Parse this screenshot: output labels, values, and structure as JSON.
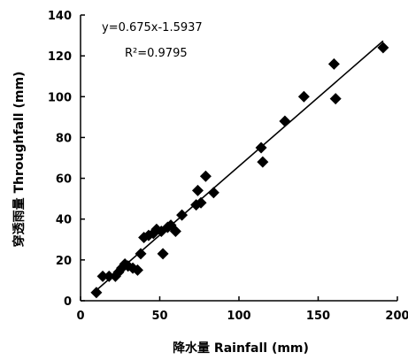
{
  "chart_data": {
    "type": "scatter",
    "title": "",
    "xlabel": "降水量 Rainfall (mm)",
    "ylabel": "穿透雨量 Throughfall (mm)",
    "xlim": [
      0,
      200
    ],
    "ylim": [
      0,
      140
    ],
    "xticks": [
      0,
      50,
      100,
      150,
      200
    ],
    "yticks": [
      0,
      20,
      40,
      60,
      80,
      100,
      120,
      140
    ],
    "grid": false,
    "marker": "diamond",
    "marker_color": "#000000",
    "annotations": [
      "y=0.675x-1.5937",
      "R²=0.9795"
    ],
    "trendline": {
      "slope": 0.675,
      "intercept": -1.5937
    },
    "series": [
      {
        "points": [
          [
            10,
            4
          ],
          [
            14,
            12
          ],
          [
            18,
            12
          ],
          [
            22,
            12
          ],
          [
            24,
            14
          ],
          [
            26,
            16
          ],
          [
            28,
            18
          ],
          [
            30,
            17
          ],
          [
            33,
            16
          ],
          [
            36,
            15
          ],
          [
            38,
            23
          ],
          [
            40,
            31
          ],
          [
            43,
            32
          ],
          [
            46,
            33
          ],
          [
            48,
            35
          ],
          [
            51,
            34
          ],
          [
            52,
            23
          ],
          [
            55,
            36
          ],
          [
            57,
            37
          ],
          [
            60,
            34
          ],
          [
            64,
            42
          ],
          [
            73,
            47
          ],
          [
            74,
            54
          ],
          [
            76,
            48
          ],
          [
            79,
            61
          ],
          [
            84,
            53
          ],
          [
            114,
            75
          ],
          [
            115,
            68
          ],
          [
            129,
            88
          ],
          [
            141,
            100
          ],
          [
            160,
            116
          ],
          [
            161,
            99
          ],
          [
            191,
            124
          ]
        ]
      }
    ]
  }
}
